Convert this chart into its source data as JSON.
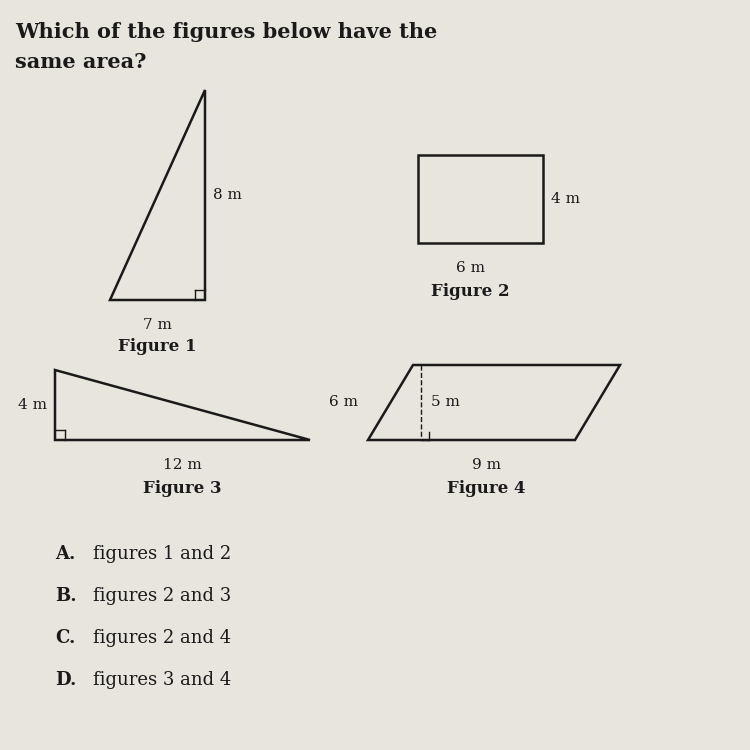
{
  "background_color": "#e8e4de",
  "title_line1": "Which of the figures below have the",
  "title_line2": "same area?",
  "title_fontsize": 15,
  "answers": [
    {
      "letter": "A.",
      "text": "figures 1 and 2"
    },
    {
      "letter": "B.",
      "text": "figures 2 and 3"
    },
    {
      "letter": "C.",
      "text": "figures 2 and 4"
    },
    {
      "letter": "D.",
      "text": "figures 3 and 4"
    }
  ],
  "answer_fontsize": 13,
  "shape_linewidth": 1.8,
  "shape_color": "#1a1a1a",
  "label_fontsize": 11,
  "fig_label_fontsize": 12
}
